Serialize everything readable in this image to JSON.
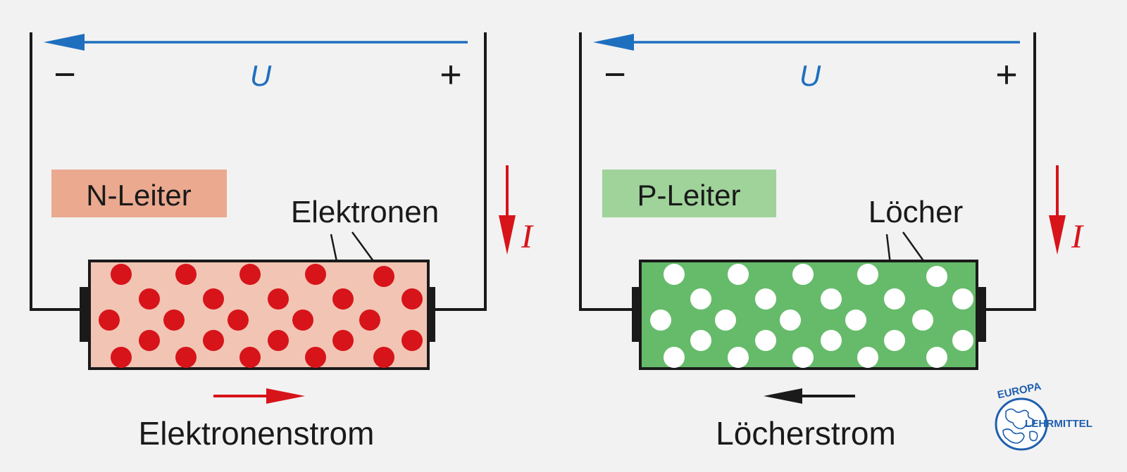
{
  "colors": {
    "background": "#f2f2f2",
    "voltage_arrow": "#1f6fbf",
    "current_arrow": "#d7141a",
    "wire": "#1a1a1a",
    "n_body_fill": "#f2c4b4",
    "n_label_bg": "#eba98f",
    "n_particle": "#d7141a",
    "p_body_fill": "#66bb6a",
    "p_label_bg": "#9fd39a",
    "p_particle": "#ffffff",
    "logo": "#1f5fae"
  },
  "left_panel": {
    "minus_sign": "−",
    "plus_sign": "+",
    "voltage_label": "U",
    "current_label": "I",
    "material_label": "N-Leiter",
    "particle_label": "Elektronen",
    "flow_label": "Elektronenstrom",
    "flow_direction": "right",
    "particle_type": "Elektronen"
  },
  "right_panel": {
    "minus_sign": "−",
    "plus_sign": "+",
    "voltage_label": "U",
    "current_label": "I",
    "material_label": "P-Leiter",
    "particle_label": "Löcher",
    "flow_label": "Löcherstrom",
    "flow_direction": "left",
    "particle_type": "Löcher"
  },
  "logo": {
    "top_text": "EUROPA",
    "side_text": "LEHRMITTEL",
    "icon": "globe-icon"
  }
}
